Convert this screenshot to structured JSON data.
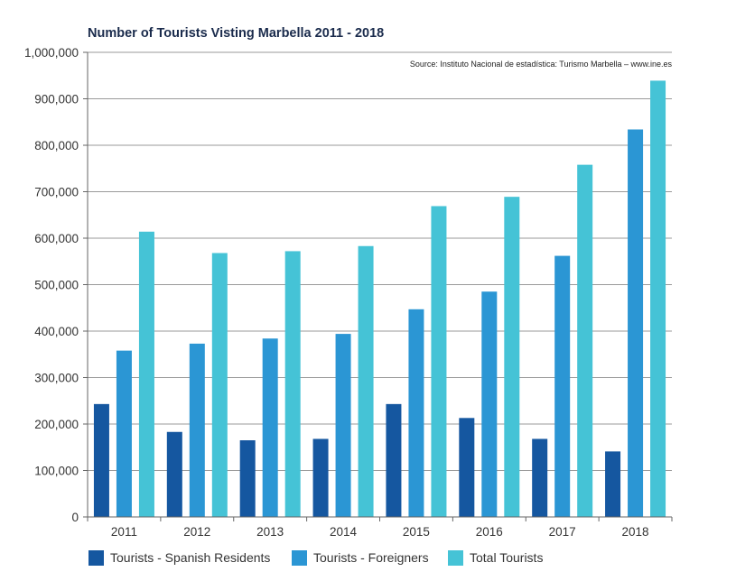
{
  "chart_data": {
    "type": "bar",
    "title": "Number of Tourists Visting Marbella 2011 - 2018",
    "source": "Source: Instituto Nacional de estadística: Turismo Marbella – www.ine.es",
    "categories": [
      "2011",
      "2012",
      "2013",
      "2014",
      "2015",
      "2016",
      "2017",
      "2018"
    ],
    "series": [
      {
        "name": "Tourists - Spanish Residents",
        "color": "#1557a0",
        "values": [
          243000,
          183000,
          165000,
          168000,
          243000,
          213000,
          168000,
          141000
        ]
      },
      {
        "name": "Tourists - Foreigners",
        "color": "#2b96d4",
        "values": [
          358000,
          373000,
          384000,
          394000,
          447000,
          485000,
          562000,
          834000
        ]
      },
      {
        "name": "Total Tourists",
        "color": "#45c3d6",
        "values": [
          614000,
          568000,
          572000,
          583000,
          669000,
          689000,
          758000,
          939000
        ]
      }
    ],
    "y_ticks": [
      "0",
      "100,000",
      "200,000",
      "300,000",
      "400,000",
      "500,000",
      "600,000",
      "700,000",
      "800,000",
      "900,000",
      "1,000,000"
    ],
    "ylim": [
      0,
      1000000
    ],
    "grid": true,
    "legend_position": "bottom-left",
    "xlabel": "",
    "ylabel": ""
  }
}
